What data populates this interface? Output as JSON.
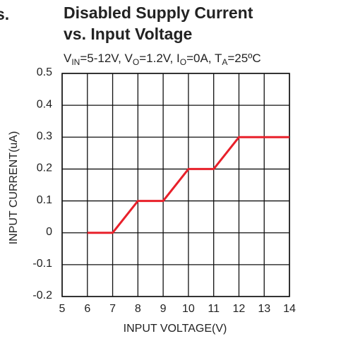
{
  "chart_data": {
    "type": "line",
    "fragment": "s.",
    "title": [
      "Disabled Supply Current",
      "vs. Input Voltage"
    ],
    "subtitle": [
      {
        "text": "V"
      },
      {
        "text": "IN",
        "sub": true
      },
      {
        "text": "=5-12V, V"
      },
      {
        "text": "O",
        "sub": true
      },
      {
        "text": "=1.2V, I"
      },
      {
        "text": "O",
        "sub": true
      },
      {
        "text": "=0A, T"
      },
      {
        "text": "A",
        "sub": true
      },
      {
        "text": "=25ºC"
      }
    ],
    "x_label": "INPUT VOLTAGE(V)",
    "y_label": "INPUT CURRENT(uA)",
    "x": [
      6,
      7,
      8,
      9,
      10,
      11,
      12,
      14
    ],
    "series": [
      {
        "name": "Input Current",
        "color": "#e8202a",
        "values": [
          0,
          0,
          0.1,
          0.1,
          0.2,
          0.2,
          0.3,
          0.3
        ]
      }
    ],
    "xlim": [
      5,
      14
    ],
    "xticks": [
      5,
      6,
      7,
      8,
      9,
      10,
      11,
      12,
      13,
      14
    ],
    "ylim": [
      -0.2,
      0.5
    ],
    "yticks": [
      0.5,
      0.4,
      0.3,
      0.2,
      0.1,
      0,
      -0.1,
      -0.2
    ],
    "grid": true
  }
}
